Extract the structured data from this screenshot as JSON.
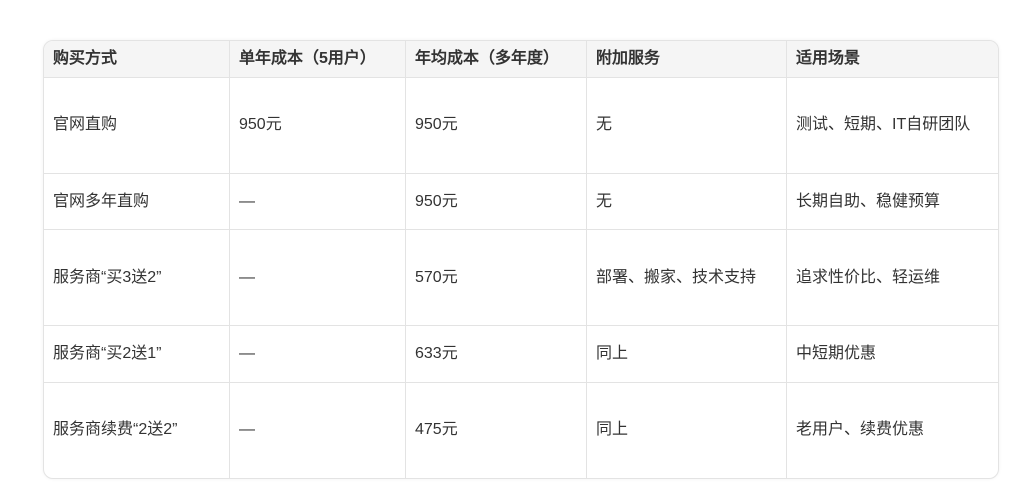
{
  "table": {
    "headers": [
      "购买方式",
      "单年成本（5用户）",
      "年均成本（多年度）",
      "附加服务",
      "适用场景"
    ],
    "rows": [
      [
        "官网直购",
        "950元",
        "950元",
        "无",
        "测试、短期、IT自研团队"
      ],
      [
        "官网多年直购",
        "—",
        "950元",
        "无",
        "长期自助、稳健预算"
      ],
      [
        "服务商“买3送2”",
        "—",
        "570元",
        "部署、搬家、技术支持",
        "追求性价比、轻运维"
      ],
      [
        "服务商“买2送1”",
        "—",
        "633元",
        "同上",
        "中短期优惠"
      ],
      [
        "服务商续费“2送2”",
        "—",
        "475元",
        "同上",
        "老用户、续费优惠"
      ]
    ]
  }
}
